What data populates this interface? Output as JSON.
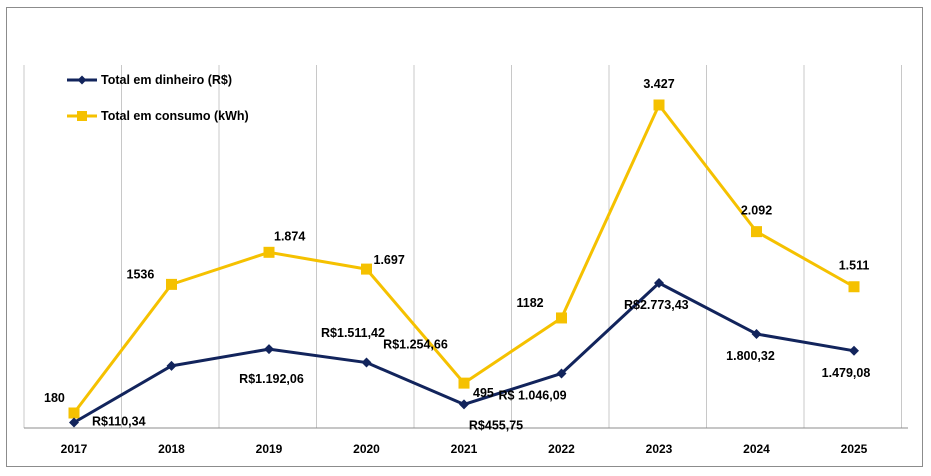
{
  "chart_data": {
    "type": "line",
    "categories": [
      "2017",
      "2018",
      "2019",
      "2020",
      "2021",
      "2022",
      "2023",
      "2024",
      "2025"
    ],
    "series": [
      {
        "name": "Total em dinheiro (R$)",
        "color": "#12245c",
        "marker": "diamond",
        "values": [
          110.34,
          1192.06,
          1511.42,
          1254.66,
          455.75,
          1046.09,
          2773.43,
          1800.32,
          1479.08
        ],
        "labels": [
          "R$110,34",
          "R$1.192,06",
          "R$1.511,42",
          "R$1.254,66",
          "R$455,75",
          "R$ 1.046,09",
          "R$2.773,43",
          "1.800,32",
          "1.479,08"
        ]
      },
      {
        "name": "Total em consumo (kWh)",
        "color": "#f5c100",
        "marker": "square",
        "values": [
          180,
          1536,
          1874,
          1697,
          495,
          1182,
          3427,
          2092,
          1511
        ],
        "labels": [
          "180",
          "1536",
          "1.874",
          "1.697",
          "495",
          "1182",
          "3.427",
          "2.092",
          "1.511"
        ]
      }
    ],
    "legend": "top-left",
    "grid": "vertical"
  }
}
